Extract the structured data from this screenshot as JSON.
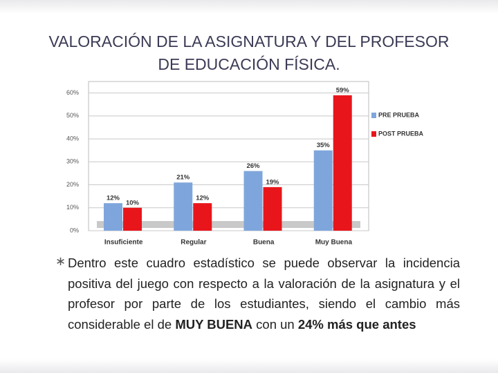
{
  "slide": {
    "title_lines": [
      "VALORACIÓN DE LA ASIGNATURA Y DEL PROFESOR",
      "DE EDUCACIÓN FÍSICA."
    ],
    "bullet": [
      {
        "text": "Dentro este cuadro estadístico se puede observar la incidencia positiva del juego con respecto a la valoración de la asignatura y el profesor por parte de los estudiantes, siendo el cambio más considerable el de ",
        "bold": false
      },
      {
        "text": "MUY BUENA",
        "bold": true
      },
      {
        "text": " con un ",
        "bold": false
      },
      {
        "text": "24% más que antes",
        "bold": true
      }
    ]
  },
  "chart_data": {
    "type": "bar",
    "categories": [
      "Insuficiente",
      "Regular",
      "Buena",
      "Muy Buena"
    ],
    "series": [
      {
        "name": "PRE PRUEBA",
        "color": "#7fa6dc",
        "values": [
          12,
          21,
          26,
          35
        ],
        "value_labels": [
          "12%",
          "21%",
          "26%",
          "35%"
        ]
      },
      {
        "name": "POST PRUEBA",
        "color": "#e8161b",
        "values": [
          10,
          12,
          19,
          59
        ],
        "value_labels": [
          "10%",
          "12%",
          "19%",
          "59%"
        ]
      }
    ],
    "ylim": [
      0,
      65
    ],
    "yticks": [
      {
        "value": 0,
        "label": "0%"
      },
      {
        "value": 10,
        "label": "10%"
      },
      {
        "value": 20,
        "label": "20%"
      },
      {
        "value": 30,
        "label": "30%"
      },
      {
        "value": 40,
        "label": "40%"
      },
      {
        "value": 50,
        "label": "50%"
      },
      {
        "value": 60,
        "label": "60%"
      }
    ],
    "grid": true,
    "legend": "right"
  }
}
